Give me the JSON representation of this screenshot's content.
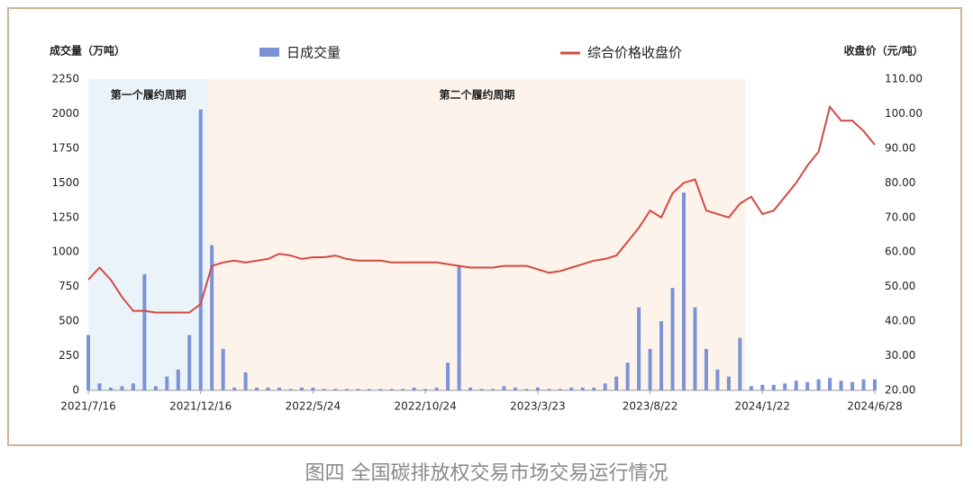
{
  "chart_data": {
    "type": "bar-line",
    "caption": "图四 全国碳排放权交易市场交易运行情况",
    "y_label": "成交量（万吨）",
    "y2_label": "收盘价（元/吨）",
    "categories": [
      "2021/7/16",
      null,
      null,
      null,
      null,
      null,
      null,
      null,
      null,
      null,
      "2021/12/16",
      null,
      null,
      null,
      null,
      null,
      null,
      null,
      null,
      null,
      "2022/5/24",
      null,
      null,
      null,
      null,
      null,
      null,
      null,
      null,
      null,
      "2022/10/24",
      null,
      null,
      null,
      null,
      null,
      null,
      null,
      null,
      null,
      "2023/3/23",
      null,
      null,
      null,
      null,
      null,
      null,
      null,
      null,
      null,
      "2023/8/22",
      null,
      null,
      null,
      null,
      null,
      null,
      null,
      null,
      null,
      "2024/1/22",
      null,
      null,
      null,
      null,
      null,
      null,
      null,
      null,
      null,
      "2024/6/28"
    ],
    "periods": [
      {
        "label": "第一个履约周期",
        "start": 0,
        "end": 10.7
      },
      {
        "label": "第二个履约周期",
        "start": 10.7,
        "end": 58.5
      }
    ],
    "series": [
      {
        "name": "日成交量",
        "type": "bar",
        "color": "#7b93d6",
        "values": [
          400,
          50,
          20,
          30,
          50,
          840,
          30,
          100,
          150,
          400,
          2030,
          1050,
          300,
          20,
          130,
          20,
          20,
          20,
          10,
          20,
          20,
          10,
          10,
          10,
          10,
          10,
          10,
          10,
          10,
          20,
          10,
          20,
          200,
          900,
          20,
          10,
          10,
          30,
          20,
          10,
          20,
          10,
          10,
          20,
          20,
          20,
          50,
          100,
          200,
          600,
          300,
          500,
          740,
          1430,
          600,
          300,
          150,
          100,
          380,
          30,
          40,
          40,
          50,
          70,
          60,
          80,
          90,
          70,
          60,
          80,
          80
        ]
      },
      {
        "name": "综合价格收盘价",
        "type": "line",
        "axis": "y2",
        "color": "#d24a44",
        "values": [
          52,
          55.5,
          52,
          47,
          43,
          43,
          42.5,
          42.5,
          42.5,
          42.5,
          45,
          56,
          57,
          57.5,
          57,
          57.5,
          58,
          59.5,
          59,
          58,
          58.5,
          58.5,
          59,
          58,
          57.5,
          57.5,
          57.5,
          57,
          57,
          57,
          57,
          57,
          56.5,
          56,
          55.5,
          55.5,
          55.5,
          56,
          56,
          56,
          55,
          54,
          54.5,
          55.5,
          56.5,
          57.5,
          58,
          59,
          63,
          67,
          72,
          70,
          77,
          80,
          81,
          72,
          71,
          70,
          74,
          76,
          71,
          72,
          76,
          80,
          85,
          89,
          102,
          98,
          98,
          95,
          91
        ]
      }
    ],
    "ylim": [
      0,
      2250
    ],
    "yticks": [
      0,
      250,
      500,
      750,
      1000,
      1250,
      1500,
      1750,
      2000,
      2250
    ],
    "y2lim": [
      20,
      110
    ],
    "y2ticks": [
      {
        "value": 20,
        "label": "20.00"
      },
      {
        "value": 30,
        "label": "30.00"
      },
      {
        "value": 40,
        "label": "40.00"
      },
      {
        "value": 50,
        "label": "50.00"
      },
      {
        "value": 60,
        "label": "60.00"
      },
      {
        "value": 70,
        "label": "70.00"
      },
      {
        "value": 80,
        "label": "80.00"
      },
      {
        "value": 90,
        "label": "90.00"
      },
      {
        "value": 100,
        "label": "100.00"
      },
      {
        "value": 110,
        "label": "110.00"
      }
    ]
  }
}
